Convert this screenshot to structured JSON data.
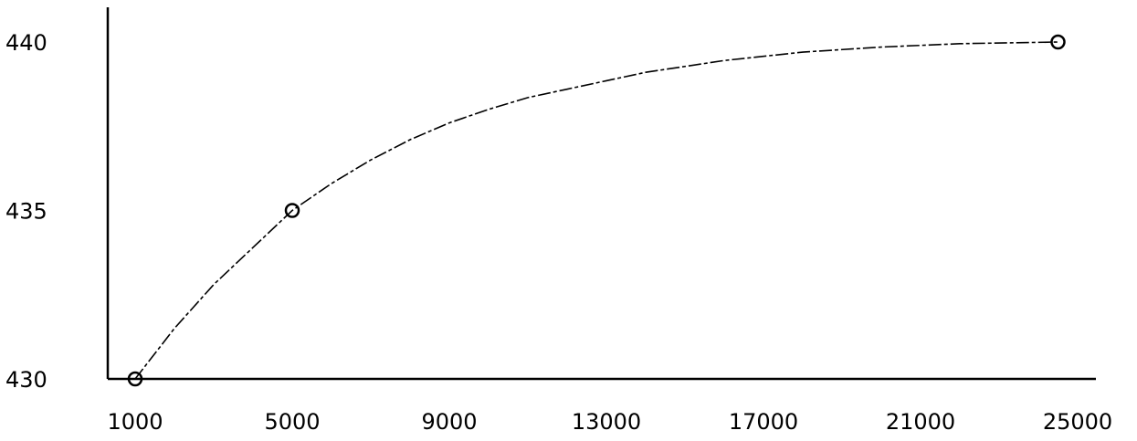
{
  "chart_data": {
    "type": "line",
    "title": "",
    "xlabel": "",
    "ylabel": "",
    "x_ticks": [
      "1000",
      "5000",
      "9000",
      "13000",
      "17000",
      "21000",
      "25000"
    ],
    "y_ticks": [
      "430",
      "435",
      "440"
    ],
    "xlim": [
      1000,
      25000
    ],
    "ylim": [
      430,
      440
    ],
    "grid": false,
    "series": [
      {
        "markers": [
          {
            "x": 1000,
            "y": 430
          },
          {
            "x": 5000,
            "y": 435
          },
          {
            "x": 24500,
            "y": 440
          }
        ],
        "curve": [
          {
            "x": 1000,
            "y": 430
          },
          {
            "x": 2000,
            "y": 431.5
          },
          {
            "x": 3000,
            "y": 432.8
          },
          {
            "x": 4000,
            "y": 433.9
          },
          {
            "x": 5000,
            "y": 435
          },
          {
            "x": 6000,
            "y": 435.8
          },
          {
            "x": 7000,
            "y": 436.5
          },
          {
            "x": 8000,
            "y": 437.1
          },
          {
            "x": 9000,
            "y": 437.6
          },
          {
            "x": 10000,
            "y": 438
          },
          {
            "x": 11000,
            "y": 438.35
          },
          {
            "x": 12000,
            "y": 438.6
          },
          {
            "x": 13000,
            "y": 438.85
          },
          {
            "x": 14000,
            "y": 439.1
          },
          {
            "x": 16000,
            "y": 439.45
          },
          {
            "x": 18000,
            "y": 439.7
          },
          {
            "x": 20000,
            "y": 439.85
          },
          {
            "x": 22000,
            "y": 439.95
          },
          {
            "x": 24500,
            "y": 440
          }
        ]
      }
    ]
  }
}
